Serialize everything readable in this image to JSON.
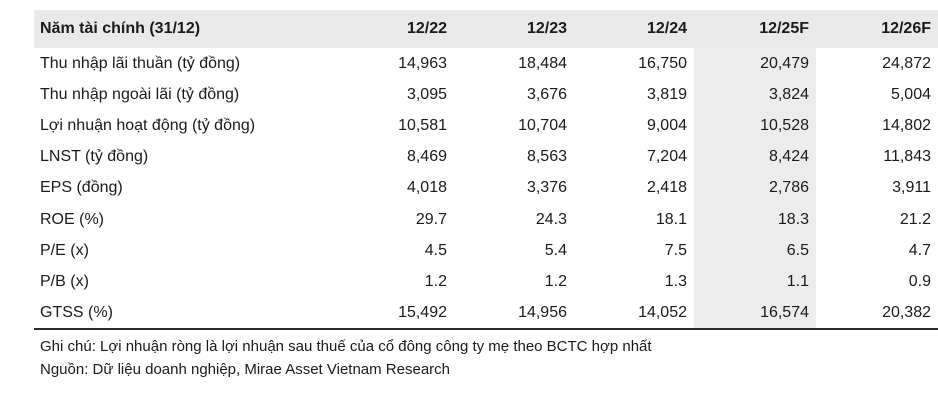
{
  "table": {
    "headers": [
      "Năm tài chính (31/12)",
      "12/22",
      "12/23",
      "12/24",
      "12/25F",
      "12/26F"
    ],
    "rows": [
      [
        "Thu nhập lãi thuần (tỷ đồng)",
        "14,963",
        "18,484",
        "16,750",
        "20,479",
        "24,872"
      ],
      [
        "Thu nhập ngoài lãi (tỷ đồng)",
        "3,095",
        "3,676",
        "3,819",
        "3,824",
        "5,004"
      ],
      [
        "Lợi nhuận hoạt động (tỷ đồng)",
        "10,581",
        "10,704",
        "9,004",
        "10,528",
        "14,802"
      ],
      [
        "LNST (tỷ đồng)",
        "8,469",
        "8,563",
        "7,204",
        "8,424",
        "11,843"
      ],
      [
        "EPS (đồng)",
        "4,018",
        "3,376",
        "2,418",
        "2,786",
        "3,911"
      ],
      [
        "ROE (%)",
        "29.7",
        "24.3",
        "18.1",
        "18.3",
        "21.2"
      ],
      [
        "P/E (x)",
        "4.5",
        "5.4",
        "7.5",
        "6.5",
        "4.7"
      ],
      [
        "P/B (x)",
        "1.2",
        "1.2",
        "1.3",
        "1.1",
        "0.9"
      ],
      [
        "GTSS (%)",
        "15,492",
        "14,956",
        "14,052",
        "16,574",
        "20,382"
      ]
    ]
  },
  "notes": {
    "note": "Ghi chú: Lợi nhuận ròng là lợi nhuận sau thuế của cổ đông công ty mẹ theo BCTC hợp nhất",
    "source": "Nguồn: Dữ liệu doanh nghiệp, Mirae Asset Vietnam Research"
  },
  "colors": {
    "header_bg": "#e9e9e9",
    "forecast_bg": "#ececec",
    "bottom_rule": "#2b2b2b"
  }
}
